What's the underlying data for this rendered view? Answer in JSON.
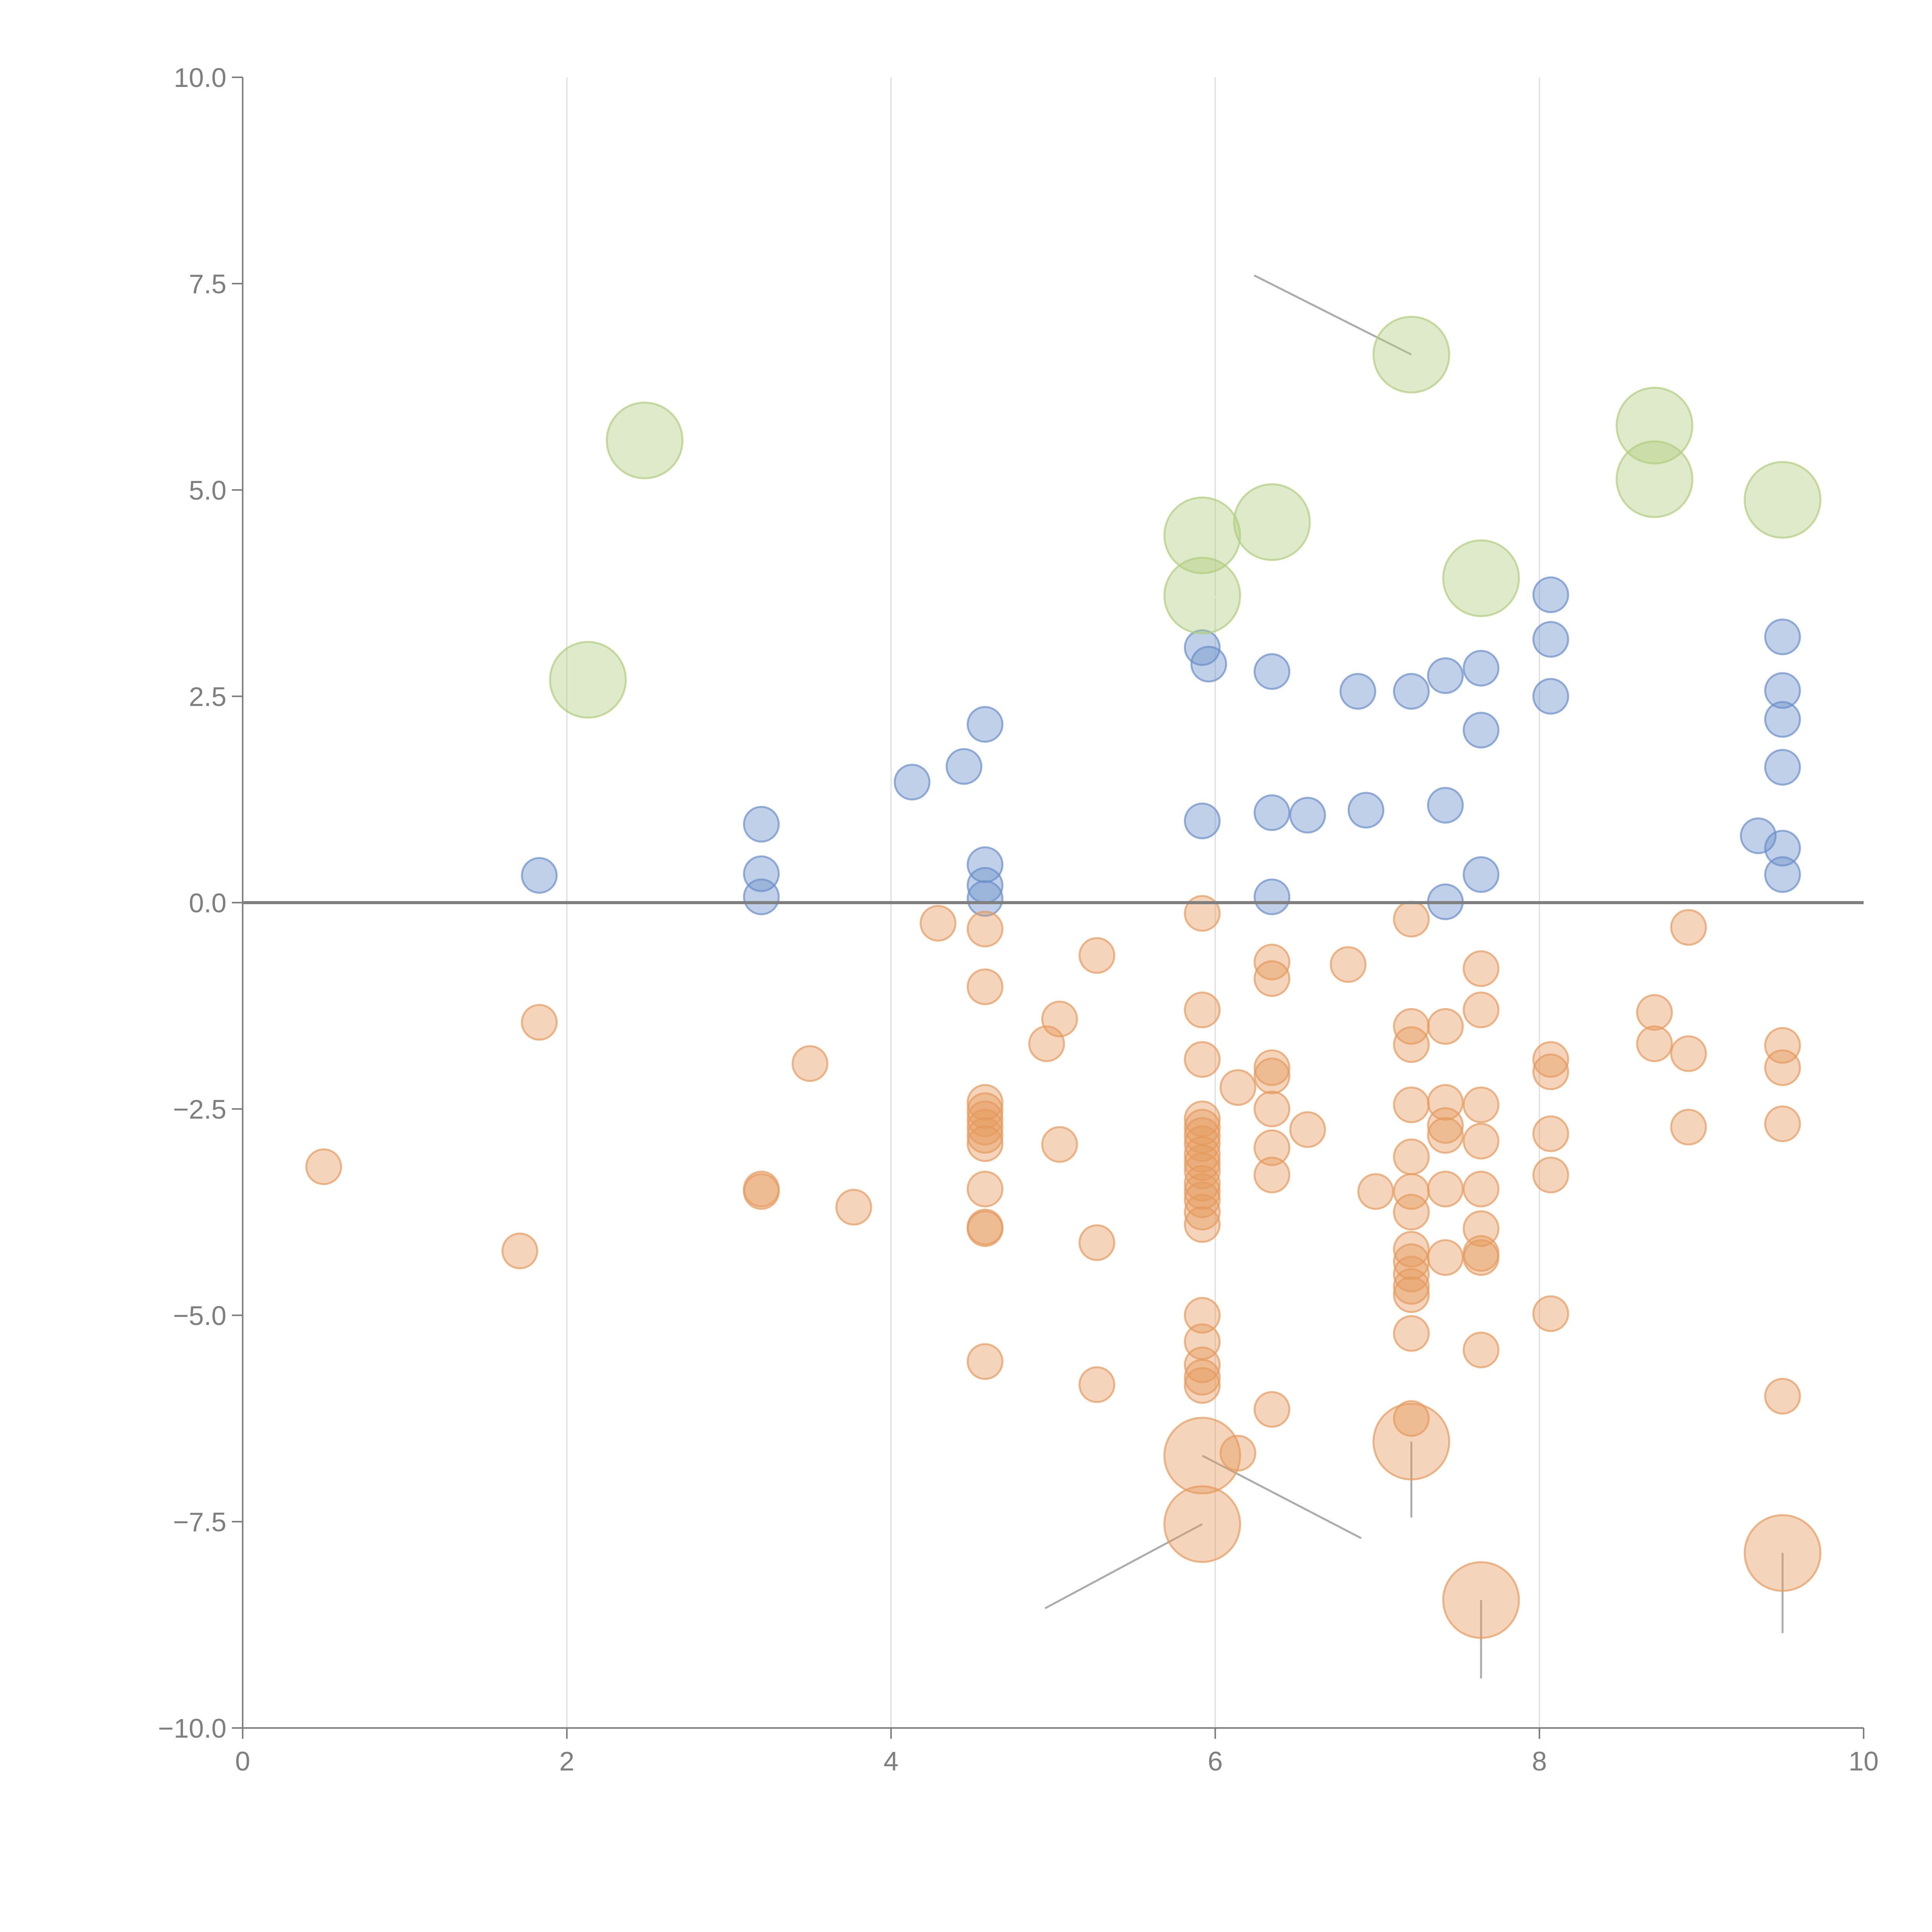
{
  "chart_data": {
    "type": "scatter",
    "title": "",
    "xlabel": "",
    "ylabel": "",
    "xlim": [
      0,
      10
    ],
    "ylim": [
      -10,
      10
    ],
    "x_ticks": [
      0,
      2,
      4,
      6,
      8,
      10
    ],
    "x_tick_labels": [
      "0",
      "2",
      "4",
      "6",
      "8",
      "10"
    ],
    "y_ticks": [
      -10,
      -7.5,
      -5,
      -2.5,
      0,
      2.5,
      5,
      7.5,
      10
    ],
    "y_tick_labels": [
      "−10.0",
      "−7.5",
      "−5.0",
      "−2.5",
      "0.0",
      "2.5",
      "5.0",
      "7.5",
      "10.0"
    ],
    "vertical_grid_at": [
      2,
      4,
      6,
      8
    ],
    "reference_line_y": 0,
    "legend": "none",
    "series": [
      {
        "name": "positive",
        "color": "#6a8fc9",
        "size": 1,
        "points": [
          [
            1.83,
            0.33
          ],
          [
            3.2,
            0.95
          ],
          [
            3.2,
            0.35
          ],
          [
            3.2,
            0.07
          ],
          [
            4.13,
            1.46
          ],
          [
            4.45,
            1.65
          ],
          [
            4.58,
            2.16
          ],
          [
            4.58,
            0.46
          ],
          [
            4.58,
            0.21
          ],
          [
            4.58,
            0.05
          ],
          [
            5.92,
            3.09
          ],
          [
            5.96,
            2.89
          ],
          [
            5.92,
            0.99
          ],
          [
            6.35,
            2.8
          ],
          [
            6.35,
            1.09
          ],
          [
            6.35,
            0.07
          ],
          [
            6.57,
            1.06
          ],
          [
            6.88,
            2.56
          ],
          [
            6.93,
            1.12
          ],
          [
            7.21,
            2.56
          ],
          [
            7.42,
            2.75
          ],
          [
            7.42,
            1.18
          ],
          [
            7.42,
            0.01
          ],
          [
            7.64,
            2.84
          ],
          [
            7.64,
            2.09
          ],
          [
            7.64,
            0.34
          ],
          [
            8.07,
            3.73
          ],
          [
            8.07,
            3.19
          ],
          [
            8.07,
            2.5
          ],
          [
            9.35,
            0.81
          ],
          [
            9.5,
            3.22
          ],
          [
            9.5,
            2.57
          ],
          [
            9.5,
            2.22
          ],
          [
            9.5,
            1.64
          ],
          [
            9.5,
            0.66
          ],
          [
            9.5,
            0.34
          ]
        ]
      },
      {
        "name": "negative",
        "color": "#e59a5c",
        "size": 1,
        "points": [
          [
            0.5,
            -3.2
          ],
          [
            1.71,
            -4.22
          ],
          [
            1.83,
            -1.45
          ],
          [
            3.2,
            -3.47
          ],
          [
            3.2,
            -3.5
          ],
          [
            3.5,
            -1.95
          ],
          [
            3.77,
            -3.69
          ],
          [
            4.29,
            -0.25
          ],
          [
            4.58,
            -0.32
          ],
          [
            4.58,
            -1.02
          ],
          [
            4.58,
            -2.42
          ],
          [
            4.58,
            -2.52
          ],
          [
            4.58,
            -2.62
          ],
          [
            4.58,
            -2.72
          ],
          [
            4.58,
            -2.82
          ],
          [
            4.58,
            -2.92
          ],
          [
            4.58,
            -3.47
          ],
          [
            4.58,
            -3.93
          ],
          [
            4.58,
            -3.95
          ],
          [
            4.58,
            -5.56
          ],
          [
            4.96,
            -1.71
          ],
          [
            5.04,
            -1.41
          ],
          [
            5.04,
            -2.93
          ],
          [
            5.27,
            -0.64
          ],
          [
            5.27,
            -4.12
          ],
          [
            5.27,
            -5.84
          ],
          [
            5.92,
            -0.13
          ],
          [
            5.92,
            -1.3
          ],
          [
            5.92,
            -1.9
          ],
          [
            5.92,
            -2.62
          ],
          [
            5.92,
            -2.72
          ],
          [
            5.92,
            -2.82
          ],
          [
            5.92,
            -2.92
          ],
          [
            5.92,
            -3.05
          ],
          [
            5.92,
            -3.15
          ],
          [
            5.92,
            -3.25
          ],
          [
            5.92,
            -3.4
          ],
          [
            5.92,
            -3.5
          ],
          [
            5.92,
            -3.6
          ],
          [
            5.92,
            -3.75
          ],
          [
            5.92,
            -3.9
          ],
          [
            5.92,
            -5.0
          ],
          [
            5.92,
            -5.32
          ],
          [
            5.92,
            -5.6
          ],
          [
            5.92,
            -5.75
          ],
          [
            5.92,
            -5.85
          ],
          [
            6.14,
            -2.24
          ],
          [
            6.14,
            -6.67
          ],
          [
            6.35,
            -0.72
          ],
          [
            6.35,
            -0.92
          ],
          [
            6.35,
            -2.0
          ],
          [
            6.35,
            -2.1
          ],
          [
            6.35,
            -2.5
          ],
          [
            6.35,
            -2.97
          ],
          [
            6.35,
            -3.3
          ],
          [
            6.35,
            -6.14
          ],
          [
            6.57,
            -2.75
          ],
          [
            6.82,
            -0.75
          ],
          [
            6.99,
            -3.5
          ],
          [
            7.21,
            -0.2
          ],
          [
            7.21,
            -1.5
          ],
          [
            7.21,
            -1.72
          ],
          [
            7.21,
            -2.45
          ],
          [
            7.21,
            -3.08
          ],
          [
            7.21,
            -3.5
          ],
          [
            7.21,
            -3.75
          ],
          [
            7.21,
            -4.2
          ],
          [
            7.21,
            -4.35
          ],
          [
            7.21,
            -4.5
          ],
          [
            7.21,
            -4.65
          ],
          [
            7.21,
            -4.75
          ],
          [
            7.21,
            -5.22
          ],
          [
            7.21,
            -6.25
          ],
          [
            7.42,
            -1.5
          ],
          [
            7.42,
            -2.42
          ],
          [
            7.42,
            -2.7
          ],
          [
            7.42,
            -2.82
          ],
          [
            7.42,
            -3.47
          ],
          [
            7.42,
            -4.3
          ],
          [
            7.64,
            -0.8
          ],
          [
            7.64,
            -1.3
          ],
          [
            7.64,
            -2.45
          ],
          [
            7.64,
            -2.89
          ],
          [
            7.64,
            -3.47
          ],
          [
            7.64,
            -3.95
          ],
          [
            7.64,
            -4.25
          ],
          [
            7.64,
            -4.3
          ],
          [
            7.64,
            -5.42
          ],
          [
            8.07,
            -1.9
          ],
          [
            8.07,
            -2.05
          ],
          [
            8.07,
            -2.8
          ],
          [
            8.07,
            -3.3
          ],
          [
            8.07,
            -4.98
          ],
          [
            8.71,
            -1.33
          ],
          [
            8.71,
            -1.71
          ],
          [
            8.92,
            -0.3
          ],
          [
            8.92,
            -1.83
          ],
          [
            8.92,
            -2.72
          ],
          [
            9.5,
            -1.73
          ],
          [
            9.5,
            -2.0
          ],
          [
            9.5,
            -2.68
          ],
          [
            9.5,
            -5.98
          ]
        ]
      },
      {
        "name": "highlighted-positive",
        "color": "#b0cd7e",
        "size": 2,
        "points": [
          [
            2.13,
            2.7
          ],
          [
            2.48,
            5.6
          ],
          [
            5.92,
            4.45
          ],
          [
            5.92,
            3.72
          ],
          [
            6.35,
            4.61
          ],
          [
            7.21,
            6.64
          ],
          [
            7.64,
            3.93
          ],
          [
            8.71,
            5.78
          ],
          [
            8.71,
            5.13
          ],
          [
            9.5,
            4.88
          ]
        ]
      },
      {
        "name": "highlighted-negative",
        "color": "#e59a5c",
        "size": 2,
        "points": [
          [
            5.92,
            -6.7
          ],
          [
            5.92,
            -7.53
          ],
          [
            7.21,
            -6.53
          ],
          [
            7.64,
            -8.45
          ],
          [
            9.5,
            -7.88
          ]
        ]
      }
    ],
    "annotation_leaders": [
      {
        "from": [
          7.21,
          6.64
        ],
        "to": [
          6.24,
          7.6
        ],
        "color": "gray"
      },
      {
        "from": [
          5.92,
          -6.7
        ],
        "to": [
          6.9,
          -7.7
        ],
        "color": "gray"
      },
      {
        "from": [
          5.92,
          -7.53
        ],
        "to": [
          4.95,
          -8.55
        ],
        "color": "gray"
      },
      {
        "from": [
          7.21,
          -6.53
        ],
        "to": [
          7.21,
          -7.45
        ],
        "color": "gray"
      },
      {
        "from": [
          7.64,
          -8.45
        ],
        "to": [
          7.64,
          -9.4
        ],
        "color": "gray"
      },
      {
        "from": [
          9.5,
          -7.88
        ],
        "to": [
          9.5,
          -8.85
        ],
        "color": "gray"
      },
      {
        "from": [
          2.13,
          2.7
        ],
        "to": [
          2.45,
          2.8
        ],
        "color": "white"
      },
      {
        "from": [
          5.92,
          3.72
        ],
        "to": [
          6.2,
          3.65
        ],
        "color": "white"
      },
      {
        "from": [
          6.35,
          4.61
        ],
        "to": [
          6.55,
          4.95
        ],
        "color": "white"
      },
      {
        "from": [
          7.64,
          3.93
        ],
        "to": [
          7.85,
          3.55
        ],
        "color": "white"
      },
      {
        "from": [
          8.07,
          2.8
        ],
        "to": [
          8.2,
          2.4
        ],
        "color": "white"
      },
      {
        "from": [
          8.71,
          5.78
        ],
        "to": [
          8.55,
          6.0
        ],
        "color": "white"
      },
      {
        "from": [
          9.5,
          4.88
        ],
        "to": [
          9.35,
          4.55
        ],
        "color": "white"
      }
    ],
    "colors": {
      "positive": "#6a8fc9",
      "negative": "#e59a5c",
      "highlight": "#b0cd7e",
      "axis": "#7f7f7f",
      "grid": "#dcdcdc",
      "leader": "#ababab"
    }
  }
}
